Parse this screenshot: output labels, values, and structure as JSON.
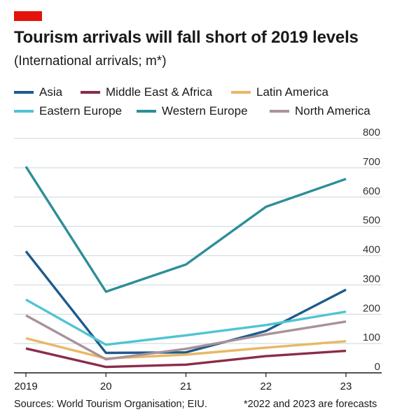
{
  "header": {
    "title": "Tourism arrivals will fall short of 2019 levels",
    "subtitle": "(International arrivals; m*)"
  },
  "footer": {
    "source": "Sources: World Tourism Organisation; EIU.",
    "note": "*2022 and 2023 are forecasts"
  },
  "colors": {
    "brand_tag": "#e3120b",
    "grid": "#d4dde3",
    "axis": "#1a1a1a"
  },
  "chart_data": {
    "type": "line",
    "title": "Tourism arrivals will fall short of 2019 levels",
    "subtitle": "(International arrivals; m*)",
    "x": [
      2019,
      2020,
      2021,
      2022,
      2023
    ],
    "x_tick_labels": [
      "2019",
      "20",
      "21",
      "22",
      "23"
    ],
    "ylim": [
      0,
      800
    ],
    "y_ticks": [
      0,
      100,
      200,
      300,
      400,
      500,
      600,
      700,
      800
    ],
    "y_tick_labels": [
      "0",
      "100",
      "200",
      "300",
      "400",
      "500",
      "600",
      "700",
      "800"
    ],
    "grid": true,
    "y_axis_side": "right",
    "legend_position": "top",
    "series": [
      {
        "name": "Asia",
        "color": "#1d5b8c",
        "values": [
          415,
          68,
          70,
          143,
          284
        ]
      },
      {
        "name": "Middle East & Africa",
        "color": "#8b2c4a",
        "values": [
          83,
          20,
          28,
          57,
          75
        ]
      },
      {
        "name": "Latin America",
        "color": "#e8b865",
        "values": [
          118,
          49,
          62,
          86,
          108
        ]
      },
      {
        "name": "Eastern Europe",
        "color": "#4fc4d4",
        "values": [
          250,
          96,
          128,
          163,
          209
        ]
      },
      {
        "name": "Western Europe",
        "color": "#2d8e97",
        "values": [
          704,
          277,
          370,
          567,
          662
        ]
      },
      {
        "name": "North America",
        "color": "#a8929c",
        "values": [
          196,
          46,
          82,
          131,
          175
        ]
      }
    ]
  }
}
